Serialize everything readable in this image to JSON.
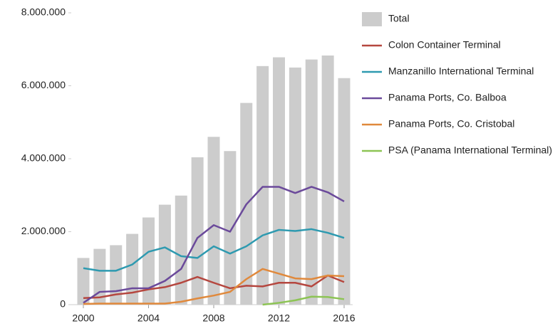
{
  "chart_data": {
    "type": "bar-line",
    "x": [
      2000,
      2001,
      2002,
      2003,
      2004,
      2005,
      2006,
      2007,
      2008,
      2009,
      2010,
      2011,
      2012,
      2013,
      2014,
      2015,
      2016
    ],
    "xlim": [
      2000,
      2016
    ],
    "xticks": [
      2000,
      2004,
      2008,
      2012,
      2016
    ],
    "ylim": [
      0,
      8000000
    ],
    "yticks": [
      0,
      {
        "value": 2000000,
        "label": "2.000.000"
      },
      {
        "value": 4000000,
        "label": "4.000.000"
      },
      {
        "value": 6000000,
        "label": "6.000.000"
      },
      {
        "value": 8000000,
        "label": "8.000.000"
      }
    ],
    "series": [
      {
        "name": "Total",
        "type": "bar",
        "color": "#cccccc",
        "values": [
          1280000,
          1530000,
          1630000,
          1940000,
          2390000,
          2740000,
          2990000,
          4040000,
          4600000,
          4210000,
          5530000,
          6540000,
          6780000,
          6500000,
          6720000,
          6830000,
          6210000
        ]
      },
      {
        "name": "Colon Container Terminal",
        "type": "line",
        "color": "#b5473f",
        "values": [
          180000,
          200000,
          280000,
          330000,
          420000,
          480000,
          600000,
          760000,
          600000,
          450000,
          520000,
          500000,
          600000,
          600000,
          500000,
          800000,
          620000
        ]
      },
      {
        "name": "Manzanillo International Terminal",
        "type": "line",
        "color": "#2e9ab0",
        "values": [
          1000000,
          930000,
          930000,
          1100000,
          1450000,
          1570000,
          1330000,
          1280000,
          1600000,
          1400000,
          1600000,
          1900000,
          2050000,
          2020000,
          2070000,
          1970000,
          1830000
        ]
      },
      {
        "name": "Panama Ports, Co. Balboa",
        "type": "line",
        "color": "#6b4a9b",
        "values": [
          50000,
          350000,
          370000,
          450000,
          450000,
          650000,
          980000,
          1830000,
          2180000,
          2000000,
          2750000,
          3230000,
          3230000,
          3060000,
          3230000,
          3080000,
          2830000
        ]
      },
      {
        "name": "Panama Ports, Co. Cristobal",
        "type": "line",
        "color": "#e0893c",
        "values": [
          20000,
          30000,
          30000,
          30000,
          30000,
          30000,
          80000,
          170000,
          250000,
          350000,
          700000,
          980000,
          850000,
          720000,
          700000,
          800000,
          780000
        ]
      },
      {
        "name": "PSA (Panama International Terminal)",
        "type": "line",
        "color": "#8dc455",
        "values": [
          null,
          null,
          null,
          null,
          null,
          null,
          null,
          null,
          null,
          null,
          null,
          0,
          50000,
          120000,
          220000,
          210000,
          150000
        ]
      }
    ]
  }
}
